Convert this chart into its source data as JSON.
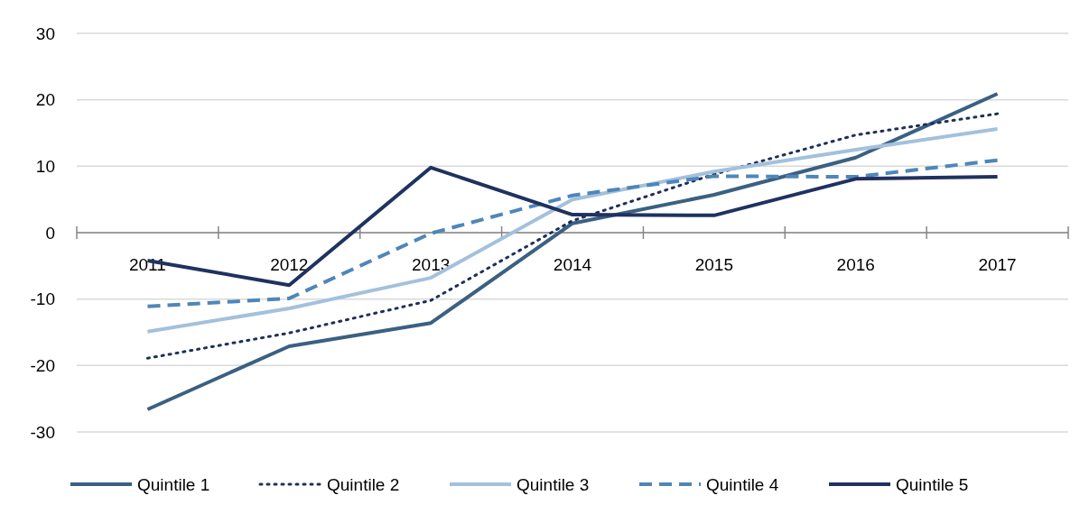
{
  "chart_data": {
    "type": "line",
    "categories": [
      "2011",
      "2012",
      "2013",
      "2014",
      "2015",
      "2016",
      "2017"
    ],
    "series": [
      {
        "name": "Quintile 1",
        "color": "#3b6081",
        "line_style": "solid",
        "values": [
          -26.6,
          -17.1,
          -13.6,
          1.4,
          5.7,
          11.3,
          20.9
        ]
      },
      {
        "name": "Quintile 2",
        "color": "#1f2f5a",
        "line_style": "dotted",
        "values": [
          -18.9,
          -15.1,
          -10.2,
          1.8,
          8.8,
          14.7,
          17.9
        ]
      },
      {
        "name": "Quintile 3",
        "color": "#a3c1dc",
        "line_style": "solid",
        "values": [
          -14.9,
          -11.4,
          -6.8,
          5.0,
          9.2,
          12.5,
          15.6
        ]
      },
      {
        "name": "Quintile 4",
        "color": "#4f86b8",
        "line_style": "dashed",
        "values": [
          -11.1,
          -9.9,
          -0.1,
          5.6,
          8.5,
          8.4,
          10.9
        ]
      },
      {
        "name": "Quintile 5",
        "color": "#1f3260",
        "line_style": "solid",
        "values": [
          -4.2,
          -7.9,
          9.8,
          2.7,
          2.6,
          8.1,
          8.4
        ]
      }
    ],
    "ylim": [
      -30,
      30
    ],
    "yticks": [
      -30,
      -20,
      -10,
      0,
      10,
      20,
      30
    ],
    "grid": "y",
    "legend": "bottom",
    "marker": "none"
  }
}
